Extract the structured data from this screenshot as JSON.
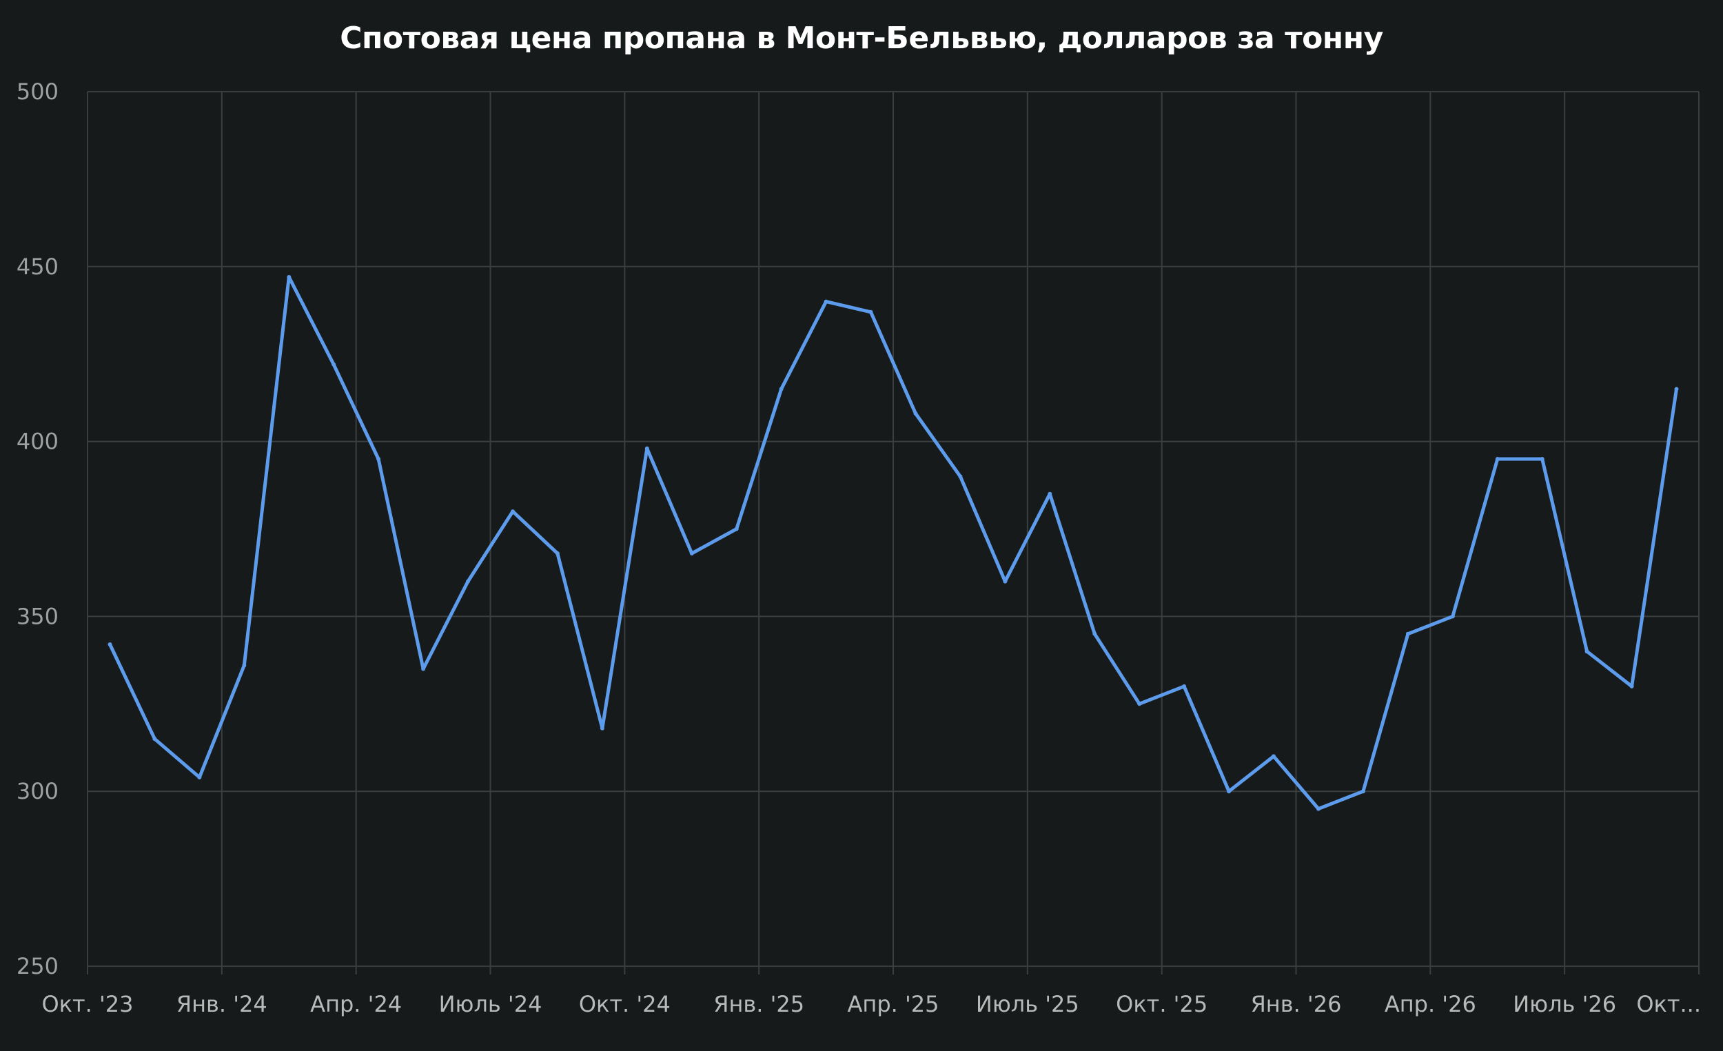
{
  "chart_data": {
    "type": "line",
    "title": "Спотовая цена пропана в Монт-Бельвью, долларов за тонну",
    "xlabel": "",
    "ylabel": "",
    "ylim": [
      250,
      500
    ],
    "yticks": [
      250,
      300,
      350,
      400,
      450,
      500
    ],
    "xticks": [
      "Окт. '23",
      "Янв. '24",
      "Апр. '24",
      "Июль '24",
      "Окт. '24",
      "Янв. '25",
      "Апр. '25",
      "Июль '25",
      "Окт. '25",
      "Янв. '26",
      "Апр. '26",
      "Июль '26",
      "Окт..."
    ],
    "grid": true,
    "legend": "none",
    "line_color": "#5d9cec",
    "background_color": "#171a1a",
    "x_range": [
      "2023-10",
      "2026-10"
    ],
    "series": [
      {
        "x": [
          "2023-10",
          "2023-11",
          "2023-12",
          "2024-01",
          "2024-02",
          "2024-03",
          "2024-04",
          "2024-05",
          "2024-06",
          "2024-07",
          "2024-08",
          "2024-09",
          "2024-10",
          "2024-11",
          "2024-12",
          "2025-01",
          "2025-02",
          "2025-03",
          "2025-04",
          "2025-05",
          "2025-06",
          "2025-07",
          "2025-08",
          "2025-09",
          "2025-10",
          "2025-11",
          "2025-12",
          "2026-01",
          "2026-02",
          "2026-03",
          "2026-04",
          "2026-05",
          "2026-06",
          "2026-07",
          "2026-08",
          "2026-09"
        ],
        "values": [
          342,
          315,
          304,
          336,
          447,
          422,
          395,
          335,
          360,
          380,
          368,
          318,
          398,
          368,
          375,
          415,
          440,
          437,
          408,
          390,
          360,
          385,
          345,
          325,
          330,
          300,
          310,
          295,
          300,
          345,
          350,
          395,
          395,
          340,
          330,
          415
        ]
      }
    ]
  }
}
